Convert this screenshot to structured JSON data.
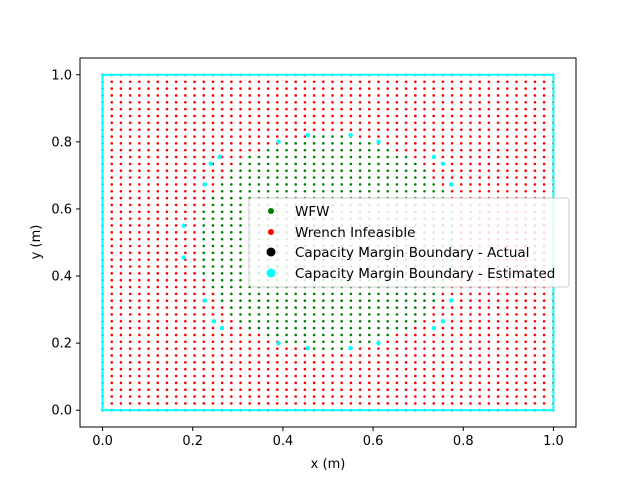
{
  "chart_data": {
    "type": "scatter",
    "xlabel": "x (m)",
    "ylabel": "y (m)",
    "xlim": [
      -0.05,
      1.05
    ],
    "ylim": [
      -0.05,
      1.05
    ],
    "xticks": [
      "0.0",
      "0.2",
      "0.4",
      "0.6",
      "0.8",
      "1.0"
    ],
    "yticks": [
      "0.0",
      "0.2",
      "0.4",
      "0.6",
      "0.8",
      "1.0"
    ],
    "grid": false,
    "legend_position": "center-right",
    "grid_spacing": 0.0204,
    "wfw_region": {
      "shape": "ellipse",
      "center": [
        0.5,
        0.5
      ],
      "radius_x": 0.29,
      "radius_y": 0.32
    },
    "boundary_rectangle": {
      "x": [
        0.0,
        1.0
      ],
      "y": [
        0.0,
        1.0
      ]
    },
    "estimated_boundary_points": [
      [
        0.227,
        0.673
      ],
      [
        0.24,
        0.735
      ],
      [
        0.26,
        0.755
      ],
      [
        0.18,
        0.55
      ],
      [
        0.18,
        0.455
      ],
      [
        0.227,
        0.327
      ],
      [
        0.247,
        0.265
      ],
      [
        0.265,
        0.245
      ],
      [
        0.39,
        0.2
      ],
      [
        0.455,
        0.185
      ],
      [
        0.55,
        0.185
      ],
      [
        0.612,
        0.2
      ],
      [
        0.735,
        0.245
      ],
      [
        0.755,
        0.265
      ],
      [
        0.773,
        0.327
      ],
      [
        0.773,
        0.673
      ],
      [
        0.755,
        0.735
      ],
      [
        0.735,
        0.755
      ],
      [
        0.612,
        0.8
      ],
      [
        0.55,
        0.82
      ],
      [
        0.455,
        0.82
      ],
      [
        0.39,
        0.8
      ]
    ],
    "series": [
      {
        "name": "WFW",
        "color": "#008000",
        "marker": "small-dot"
      },
      {
        "name": "Wrench Infeasible",
        "color": "#ff0000",
        "marker": "small-dot"
      },
      {
        "name": "Capacity Margin Boundary - Actual",
        "color": "#000000",
        "marker": "dot"
      },
      {
        "name": "Capacity Margin Boundary - Estimated",
        "color": "#00ffff",
        "marker": "dot"
      }
    ]
  }
}
